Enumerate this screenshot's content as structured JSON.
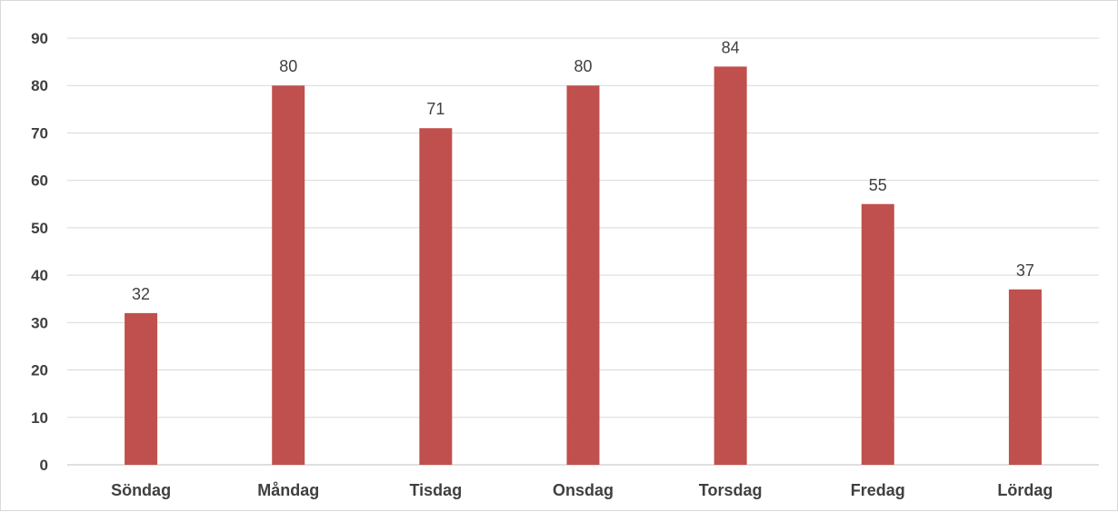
{
  "chart_data": {
    "type": "bar",
    "categories": [
      "Söndag",
      "Måndag",
      "Tisdag",
      "Onsdag",
      "Torsdag",
      "Fredag",
      "Lördag"
    ],
    "values": [
      32,
      80,
      71,
      80,
      84,
      55,
      37
    ],
    "data_labels": [
      "32",
      "80",
      "71",
      "80",
      "84",
      "55",
      "37"
    ],
    "yticks": [
      0,
      10,
      20,
      30,
      40,
      50,
      60,
      70,
      80,
      90
    ],
    "ylim": [
      0,
      90
    ],
    "grid": true,
    "legend": "none",
    "bar_color": "#c0504d"
  }
}
